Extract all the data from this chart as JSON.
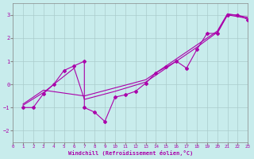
{
  "xlabel": "Windchill (Refroidissement éolien,°C)",
  "bg_color": "#c8ecec",
  "line_color": "#aa00aa",
  "grid_color": "#aacccc",
  "xlim": [
    0,
    23
  ],
  "ylim": [
    -2.5,
    3.5
  ],
  "xticks": [
    0,
    1,
    2,
    3,
    4,
    5,
    6,
    7,
    8,
    9,
    10,
    11,
    12,
    13,
    14,
    15,
    16,
    17,
    18,
    19,
    20,
    21,
    22,
    23
  ],
  "yticks": [
    -2,
    -1,
    0,
    1,
    2,
    3
  ],
  "connected_x": [
    1,
    2,
    3,
    4,
    5,
    6,
    7,
    7,
    8,
    9,
    10,
    11,
    12,
    13,
    14,
    15,
    16,
    17,
    18,
    19,
    20,
    21,
    22,
    23
  ],
  "connected_y": [
    -1.0,
    -1.0,
    -0.4,
    0.0,
    0.6,
    0.8,
    1.0,
    -1.0,
    -1.2,
    -1.6,
    -0.55,
    -0.45,
    -0.3,
    0.05,
    0.5,
    0.75,
    1.0,
    0.7,
    1.5,
    2.2,
    2.2,
    3.0,
    3.0,
    2.8
  ],
  "smooth1_x": [
    1,
    3,
    6,
    7,
    10,
    13,
    15,
    18,
    20,
    21,
    23
  ],
  "smooth1_y": [
    -0.9,
    -0.35,
    0.7,
    -0.65,
    -0.3,
    0.1,
    0.7,
    1.6,
    2.25,
    3.0,
    2.85
  ],
  "smooth2_x": [
    1,
    3,
    7,
    10,
    13,
    15,
    18,
    20,
    21,
    23
  ],
  "smooth2_y": [
    -0.85,
    -0.25,
    -0.5,
    -0.15,
    0.2,
    0.8,
    1.7,
    2.3,
    3.05,
    2.9
  ]
}
